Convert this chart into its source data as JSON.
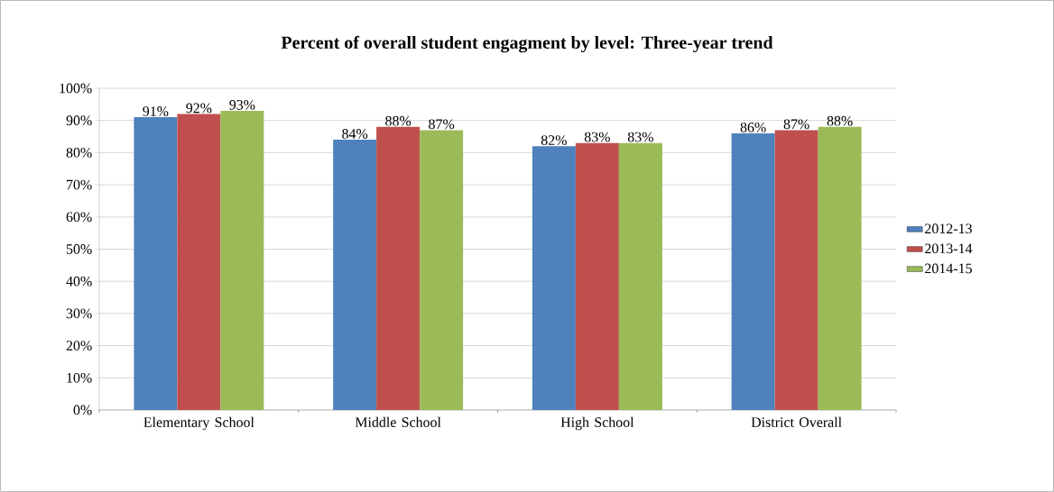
{
  "chart_data": {
    "type": "bar",
    "title": "Percent of overall student engagment by level: Three-year trend",
    "categories": [
      "Elementary School",
      "Middle School",
      "High School",
      "District Overall"
    ],
    "series": [
      {
        "name": "2012-13",
        "color": "#4f81bd",
        "values": [
          91,
          84,
          82,
          86
        ],
        "value_labels": [
          "91%",
          "84%",
          "82%",
          "86%"
        ]
      },
      {
        "name": "2013-14",
        "color": "#c0504d",
        "values": [
          92,
          88,
          83,
          87
        ],
        "value_labels": [
          "92%",
          "88%",
          "83%",
          "87%"
        ]
      },
      {
        "name": "2014-15",
        "color": "#9bbb59",
        "values": [
          93,
          87,
          83,
          88
        ],
        "value_labels": [
          "93%",
          "87%",
          "83%",
          "88%"
        ]
      }
    ],
    "ylim": [
      0,
      100
    ],
    "yticks": [
      {
        "value": 0,
        "label": "0%"
      },
      {
        "value": 10,
        "label": "10%"
      },
      {
        "value": 20,
        "label": "20%"
      },
      {
        "value": 30,
        "label": "30%"
      },
      {
        "value": 40,
        "label": "40%"
      },
      {
        "value": 50,
        "label": "50%"
      },
      {
        "value": 60,
        "label": "60%"
      },
      {
        "value": 70,
        "label": "70%"
      },
      {
        "value": 80,
        "label": "80%"
      },
      {
        "value": 90,
        "label": "90%"
      },
      {
        "value": 100,
        "label": "100%"
      }
    ],
    "grid": "y",
    "legend": "right"
  }
}
